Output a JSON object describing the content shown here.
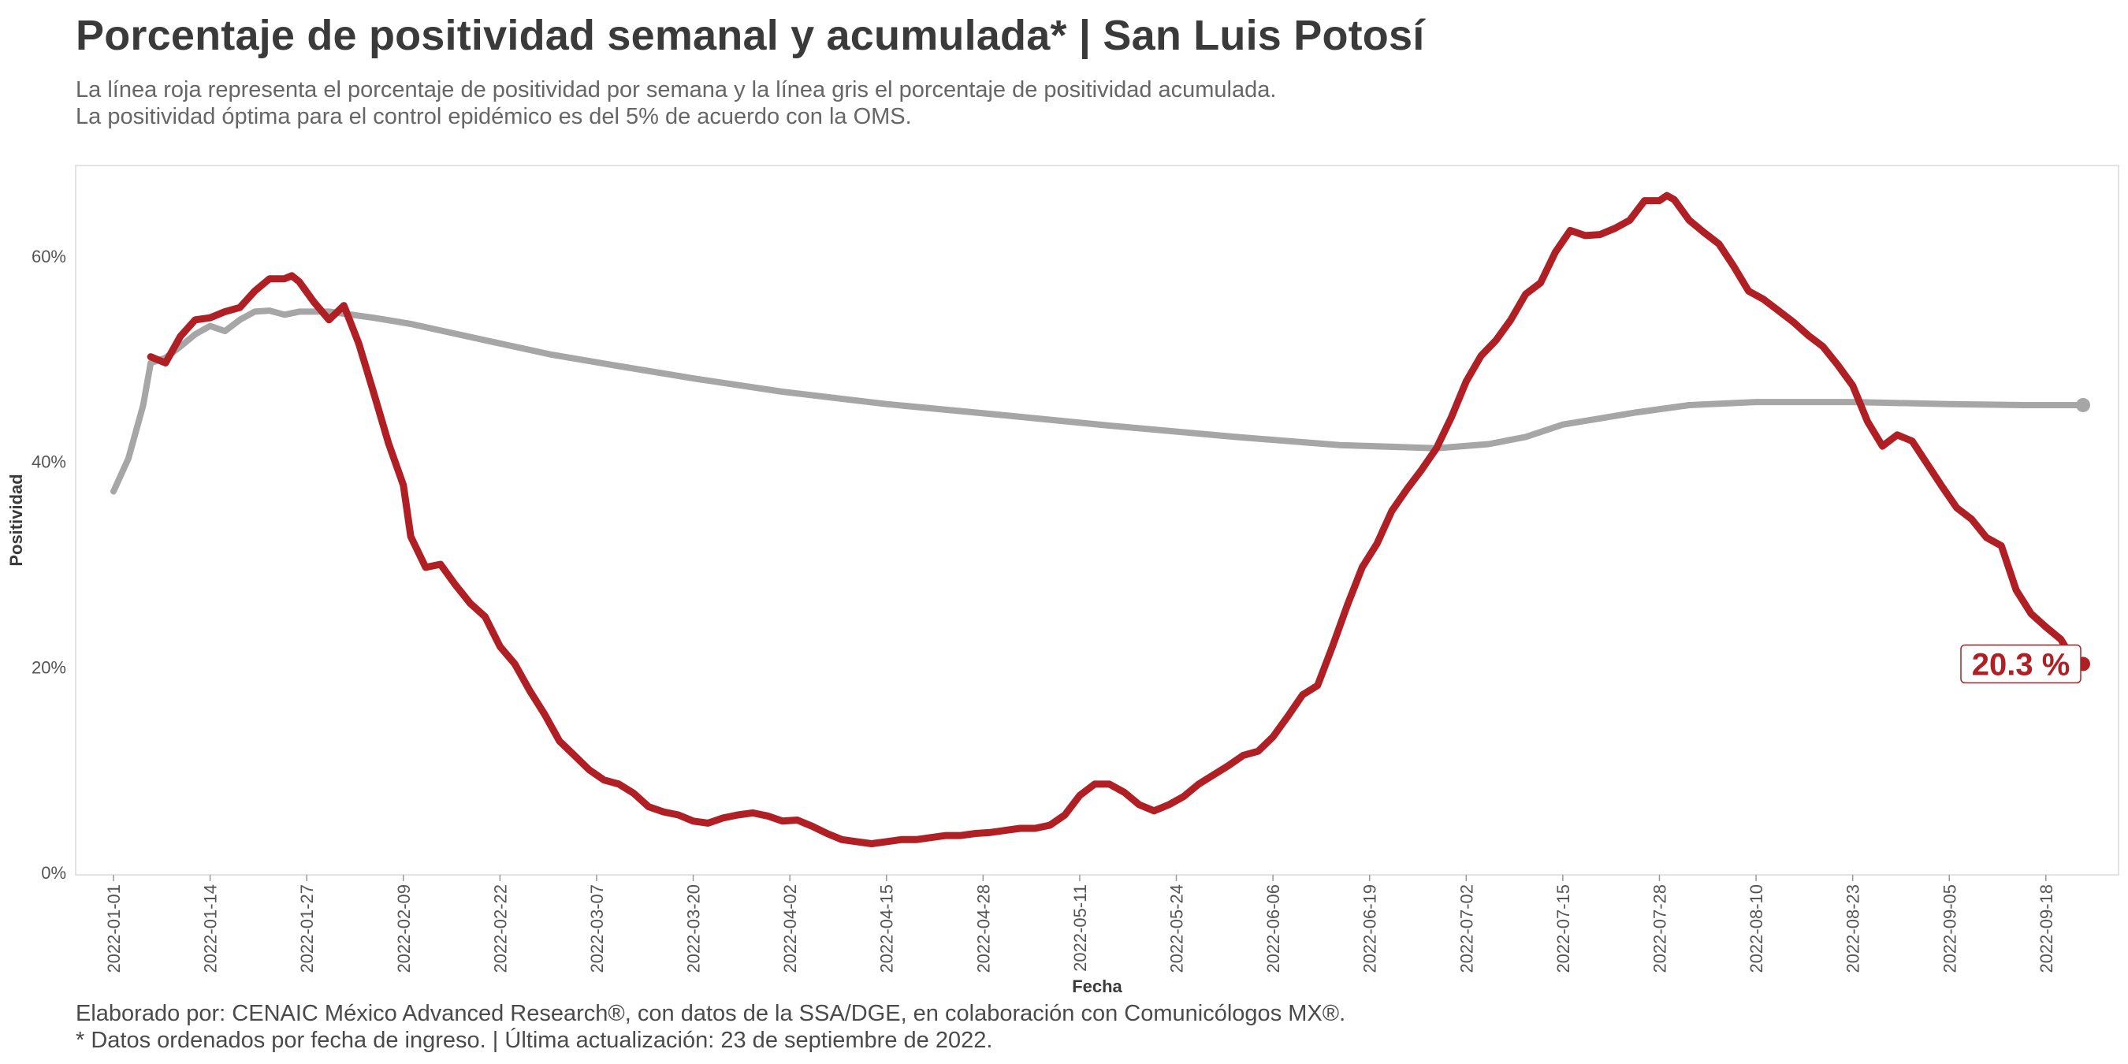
{
  "title": "Porcentaje de positividad semanal y acumulada* | San Luis Potosí",
  "subtitle_lines": [
    "La línea roja representa el porcentaje de positividad por semana y la línea gris el porcentaje de positividad acumulada.",
    "La positividad óptima para el control epidémico es del 5% de acuerdo con la OMS."
  ],
  "caption_lines": [
    "Elaborado por: CENAIC México Advanced Research®, con datos de la SSA/DGE, en colaboración con Comunicólogos MX®.",
    "* Datos ordenados por fecha de ingreso. | Última actualización: 23 de septiembre de 2022."
  ],
  "colors": {
    "weekly": "#b01f24",
    "cumulative": "#a6a6a6",
    "panel_border": "#e3e3e3"
  },
  "chart_data": {
    "type": "line",
    "xlabel": "Fecha",
    "ylabel": "Positividad",
    "x_start": "2022-01-01",
    "x_end": "2022-09-23",
    "x_ticks": [
      "2022-01-01",
      "2022-01-14",
      "2022-01-27",
      "2022-02-09",
      "2022-02-22",
      "2022-03-07",
      "2022-03-20",
      "2022-04-02",
      "2022-04-15",
      "2022-04-28",
      "2022-05-11",
      "2022-05-24",
      "2022-06-06",
      "2022-06-19",
      "2022-07-02",
      "2022-07-15",
      "2022-07-28",
      "2022-08-10",
      "2022-08-23",
      "2022-09-05",
      "2022-09-18"
    ],
    "y_ticks": [
      "0%",
      "20%",
      "40%",
      "60%"
    ],
    "y_tick_values": [
      0,
      20,
      40,
      60
    ],
    "ylim": [
      0,
      69
    ],
    "grid": false,
    "end_label": "20.3 %",
    "series": [
      {
        "key": "weekly",
        "points": [
          [
            "2022-01-06",
            50.2
          ],
          [
            "2022-01-08",
            49.6
          ],
          [
            "2022-01-10",
            52.2
          ],
          [
            "2022-01-12",
            53.8
          ],
          [
            "2022-01-14",
            54.0
          ],
          [
            "2022-01-16",
            54.6
          ],
          [
            "2022-01-18",
            55.0
          ],
          [
            "2022-01-20",
            56.6
          ],
          [
            "2022-01-22",
            57.8
          ],
          [
            "2022-01-24",
            57.8
          ],
          [
            "2022-01-25",
            58.1
          ],
          [
            "2022-01-26",
            57.5
          ],
          [
            "2022-01-28",
            55.5
          ],
          [
            "2022-01-30",
            53.8
          ],
          [
            "2022-02-01",
            55.2
          ],
          [
            "2022-02-03",
            51.5
          ],
          [
            "2022-02-05",
            46.7
          ],
          [
            "2022-02-07",
            41.8
          ],
          [
            "2022-02-09",
            37.7
          ],
          [
            "2022-02-10",
            32.7
          ],
          [
            "2022-02-12",
            29.7
          ],
          [
            "2022-02-14",
            30.0
          ],
          [
            "2022-02-16",
            28.0
          ],
          [
            "2022-02-18",
            26.2
          ],
          [
            "2022-02-20",
            24.9
          ],
          [
            "2022-02-22",
            22.0
          ],
          [
            "2022-02-24",
            20.3
          ],
          [
            "2022-02-26",
            17.7
          ],
          [
            "2022-02-28",
            15.4
          ],
          [
            "2022-03-02",
            12.8
          ],
          [
            "2022-03-04",
            11.4
          ],
          [
            "2022-03-06",
            10.0
          ],
          [
            "2022-03-08",
            9.0
          ],
          [
            "2022-03-10",
            8.6
          ],
          [
            "2022-03-12",
            7.7
          ],
          [
            "2022-03-14",
            6.4
          ],
          [
            "2022-03-16",
            5.9
          ],
          [
            "2022-03-18",
            5.6
          ],
          [
            "2022-03-20",
            5.0
          ],
          [
            "2022-03-22",
            4.8
          ],
          [
            "2022-03-24",
            5.3
          ],
          [
            "2022-03-26",
            5.6
          ],
          [
            "2022-03-28",
            5.8
          ],
          [
            "2022-03-30",
            5.5
          ],
          [
            "2022-04-01",
            5.0
          ],
          [
            "2022-04-03",
            5.1
          ],
          [
            "2022-04-05",
            4.5
          ],
          [
            "2022-04-07",
            3.8
          ],
          [
            "2022-04-09",
            3.2
          ],
          [
            "2022-04-11",
            3.0
          ],
          [
            "2022-04-13",
            2.8
          ],
          [
            "2022-04-15",
            3.0
          ],
          [
            "2022-04-17",
            3.2
          ],
          [
            "2022-04-19",
            3.2
          ],
          [
            "2022-04-21",
            3.4
          ],
          [
            "2022-04-23",
            3.6
          ],
          [
            "2022-04-25",
            3.6
          ],
          [
            "2022-04-27",
            3.8
          ],
          [
            "2022-04-29",
            3.9
          ],
          [
            "2022-05-01",
            4.1
          ],
          [
            "2022-05-03",
            4.3
          ],
          [
            "2022-05-05",
            4.3
          ],
          [
            "2022-05-07",
            4.6
          ],
          [
            "2022-05-09",
            5.6
          ],
          [
            "2022-05-11",
            7.5
          ],
          [
            "2022-05-13",
            8.6
          ],
          [
            "2022-05-15",
            8.6
          ],
          [
            "2022-05-17",
            7.8
          ],
          [
            "2022-05-19",
            6.6
          ],
          [
            "2022-05-21",
            6.0
          ],
          [
            "2022-05-23",
            6.6
          ],
          [
            "2022-05-25",
            7.4
          ],
          [
            "2022-05-27",
            8.6
          ],
          [
            "2022-05-29",
            9.5
          ],
          [
            "2022-05-31",
            10.4
          ],
          [
            "2022-06-02",
            11.4
          ],
          [
            "2022-06-04",
            11.8
          ],
          [
            "2022-06-06",
            13.2
          ],
          [
            "2022-06-08",
            15.2
          ],
          [
            "2022-06-10",
            17.3
          ],
          [
            "2022-06-12",
            18.2
          ],
          [
            "2022-06-14",
            22.0
          ],
          [
            "2022-06-16",
            26.0
          ],
          [
            "2022-06-18",
            29.7
          ],
          [
            "2022-06-20",
            32.0
          ],
          [
            "2022-06-22",
            35.2
          ],
          [
            "2022-06-24",
            37.3
          ],
          [
            "2022-06-26",
            39.2
          ],
          [
            "2022-06-28",
            41.3
          ],
          [
            "2022-06-30",
            44.3
          ],
          [
            "2022-07-02",
            47.8
          ],
          [
            "2022-07-04",
            50.3
          ],
          [
            "2022-07-06",
            51.8
          ],
          [
            "2022-07-08",
            53.8
          ],
          [
            "2022-07-10",
            56.3
          ],
          [
            "2022-07-12",
            57.4
          ],
          [
            "2022-07-14",
            60.4
          ],
          [
            "2022-07-16",
            62.5
          ],
          [
            "2022-07-18",
            62.0
          ],
          [
            "2022-07-20",
            62.1
          ],
          [
            "2022-07-22",
            62.7
          ],
          [
            "2022-07-24",
            63.5
          ],
          [
            "2022-07-26",
            65.4
          ],
          [
            "2022-07-28",
            65.4
          ],
          [
            "2022-07-29",
            65.9
          ],
          [
            "2022-07-30",
            65.5
          ],
          [
            "2022-08-01",
            63.5
          ],
          [
            "2022-08-03",
            62.3
          ],
          [
            "2022-08-05",
            61.2
          ],
          [
            "2022-08-07",
            59.0
          ],
          [
            "2022-08-09",
            56.6
          ],
          [
            "2022-08-11",
            55.8
          ],
          [
            "2022-08-13",
            54.7
          ],
          [
            "2022-08-15",
            53.6
          ],
          [
            "2022-08-17",
            52.3
          ],
          [
            "2022-08-19",
            51.2
          ],
          [
            "2022-08-21",
            49.4
          ],
          [
            "2022-08-23",
            47.4
          ],
          [
            "2022-08-25",
            43.9
          ],
          [
            "2022-08-27",
            41.5
          ],
          [
            "2022-08-29",
            42.6
          ],
          [
            "2022-08-31",
            42.0
          ],
          [
            "2022-09-02",
            39.8
          ],
          [
            "2022-09-04",
            37.6
          ],
          [
            "2022-09-06",
            35.5
          ],
          [
            "2022-09-08",
            34.4
          ],
          [
            "2022-09-10",
            32.6
          ],
          [
            "2022-09-12",
            31.8
          ],
          [
            "2022-09-14",
            27.5
          ],
          [
            "2022-09-16",
            25.2
          ],
          [
            "2022-09-18",
            23.9
          ],
          [
            "2022-09-20",
            22.7
          ],
          [
            "2022-09-22",
            20.3
          ]
        ]
      },
      {
        "key": "cumulative",
        "points": [
          [
            "2022-01-01",
            37.1
          ],
          [
            "2022-01-03",
            40.3
          ],
          [
            "2022-01-05",
            45.5
          ],
          [
            "2022-01-06",
            49.6
          ],
          [
            "2022-01-08",
            50.1
          ],
          [
            "2022-01-10",
            51.2
          ],
          [
            "2022-01-12",
            52.4
          ],
          [
            "2022-01-14",
            53.2
          ],
          [
            "2022-01-16",
            52.7
          ],
          [
            "2022-01-18",
            53.8
          ],
          [
            "2022-01-20",
            54.6
          ],
          [
            "2022-01-22",
            54.7
          ],
          [
            "2022-01-24",
            54.3
          ],
          [
            "2022-01-26",
            54.6
          ],
          [
            "2022-01-30",
            54.6
          ],
          [
            "2022-02-05",
            54.0
          ],
          [
            "2022-02-10",
            53.4
          ],
          [
            "2022-02-15",
            52.6
          ],
          [
            "2022-02-22",
            51.5
          ],
          [
            "2022-03-01",
            50.4
          ],
          [
            "2022-03-10",
            49.3
          ],
          [
            "2022-03-20",
            48.1
          ],
          [
            "2022-04-01",
            46.8
          ],
          [
            "2022-04-15",
            45.6
          ],
          [
            "2022-05-01",
            44.5
          ],
          [
            "2022-05-15",
            43.5
          ],
          [
            "2022-06-01",
            42.4
          ],
          [
            "2022-06-15",
            41.6
          ],
          [
            "2022-06-28",
            41.3
          ],
          [
            "2022-07-05",
            41.7
          ],
          [
            "2022-07-10",
            42.4
          ],
          [
            "2022-07-15",
            43.6
          ],
          [
            "2022-07-20",
            44.2
          ],
          [
            "2022-07-25",
            44.8
          ],
          [
            "2022-08-01",
            45.5
          ],
          [
            "2022-08-10",
            45.8
          ],
          [
            "2022-08-23",
            45.8
          ],
          [
            "2022-09-05",
            45.6
          ],
          [
            "2022-09-15",
            45.5
          ],
          [
            "2022-09-23",
            45.5
          ]
        ]
      }
    ]
  }
}
